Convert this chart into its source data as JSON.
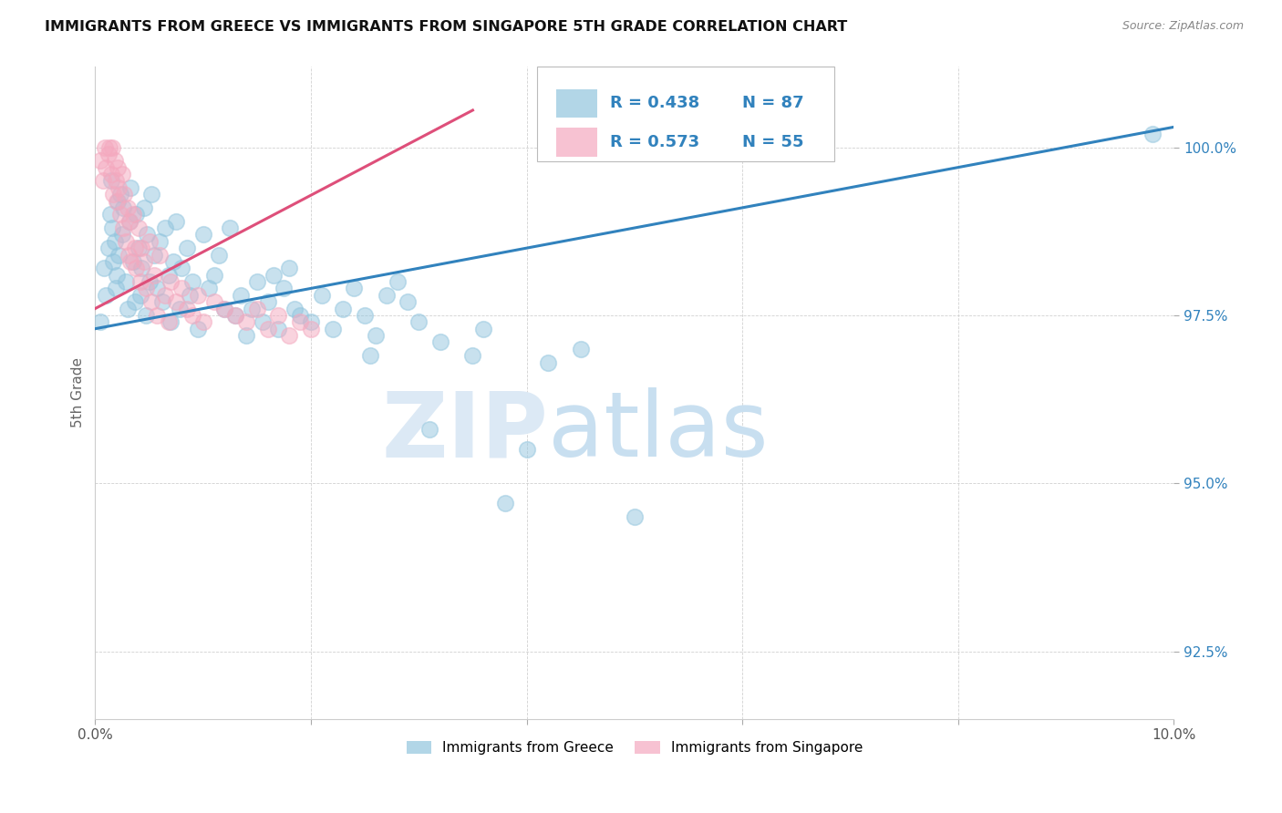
{
  "title": "IMMIGRANTS FROM GREECE VS IMMIGRANTS FROM SINGAPORE 5TH GRADE CORRELATION CHART",
  "source": "Source: ZipAtlas.com",
  "ylabel": "5th Grade",
  "xlim": [
    0.0,
    10.0
  ],
  "ylim": [
    91.5,
    101.2
  ],
  "yticks": [
    92.5,
    95.0,
    97.5,
    100.0
  ],
  "ytick_labels": [
    "92.5%",
    "95.0%",
    "97.5%",
    "100.0%"
  ],
  "legend_R_blue": "R = 0.438",
  "legend_N_blue": "N = 87",
  "legend_R_pink": "R = 0.573",
  "legend_N_pink": "N = 55",
  "legend_label_blue": "Immigrants from Greece",
  "legend_label_pink": "Immigrants from Singapore",
  "blue_color": "#92c5de",
  "pink_color": "#f4a9bf",
  "blue_line_color": "#3182bd",
  "pink_line_color": "#de4f7a",
  "watermark_zip": "ZIP",
  "watermark_atlas": "atlas",
  "blue_trendline_x": [
    0.0,
    10.0
  ],
  "blue_trendline_y": [
    97.3,
    100.3
  ],
  "pink_trendline_x": [
    0.0,
    3.5
  ],
  "pink_trendline_y": [
    97.6,
    100.55
  ],
  "blue_scatter_x": [
    0.05,
    0.08,
    0.1,
    0.12,
    0.14,
    0.15,
    0.16,
    0.17,
    0.18,
    0.19,
    0.2,
    0.21,
    0.22,
    0.23,
    0.25,
    0.26,
    0.28,
    0.3,
    0.32,
    0.33,
    0.35,
    0.37,
    0.38,
    0.4,
    0.42,
    0.43,
    0.45,
    0.47,
    0.48,
    0.5,
    0.52,
    0.55,
    0.57,
    0.6,
    0.62,
    0.65,
    0.68,
    0.7,
    0.72,
    0.75,
    0.78,
    0.8,
    0.85,
    0.88,
    0.9,
    0.95,
    1.0,
    1.05,
    1.1,
    1.15,
    1.2,
    1.25,
    1.3,
    1.35,
    1.4,
    1.45,
    1.5,
    1.55,
    1.6,
    1.65,
    1.7,
    1.75,
    1.8,
    1.85,
    1.9,
    2.0,
    2.1,
    2.2,
    2.3,
    2.4,
    2.5,
    2.55,
    2.6,
    2.7,
    2.8,
    2.9,
    3.0,
    3.1,
    3.2,
    3.5,
    3.6,
    3.8,
    4.0,
    4.2,
    4.5,
    5.0,
    9.8
  ],
  "blue_scatter_y": [
    97.4,
    98.2,
    97.8,
    98.5,
    99.0,
    99.5,
    98.8,
    98.3,
    98.6,
    97.9,
    98.1,
    99.2,
    98.4,
    99.3,
    98.7,
    99.1,
    98.0,
    97.6,
    98.9,
    99.4,
    98.3,
    97.7,
    99.0,
    98.5,
    97.8,
    98.2,
    99.1,
    97.5,
    98.7,
    98.0,
    99.3,
    98.4,
    97.9,
    98.6,
    97.7,
    98.8,
    98.1,
    97.4,
    98.3,
    98.9,
    97.6,
    98.2,
    98.5,
    97.8,
    98.0,
    97.3,
    98.7,
    97.9,
    98.1,
    98.4,
    97.6,
    98.8,
    97.5,
    97.8,
    97.2,
    97.6,
    98.0,
    97.4,
    97.7,
    98.1,
    97.3,
    97.9,
    98.2,
    97.6,
    97.5,
    97.4,
    97.8,
    97.3,
    97.6,
    97.9,
    97.5,
    96.9,
    97.2,
    97.8,
    98.0,
    97.7,
    97.4,
    95.8,
    97.1,
    96.9,
    97.3,
    94.7,
    95.5,
    96.8,
    97.0,
    94.5,
    100.2
  ],
  "pink_scatter_x": [
    0.05,
    0.07,
    0.09,
    0.1,
    0.12,
    0.13,
    0.15,
    0.16,
    0.17,
    0.18,
    0.19,
    0.2,
    0.21,
    0.22,
    0.23,
    0.25,
    0.26,
    0.27,
    0.28,
    0.3,
    0.31,
    0.32,
    0.33,
    0.35,
    0.37,
    0.38,
    0.4,
    0.42,
    0.43,
    0.45,
    0.47,
    0.5,
    0.52,
    0.55,
    0.57,
    0.6,
    0.65,
    0.68,
    0.7,
    0.75,
    0.8,
    0.85,
    0.9,
    0.95,
    1.0,
    1.1,
    1.2,
    1.3,
    1.4,
    1.5,
    1.6,
    1.7,
    1.8,
    1.9,
    2.0
  ],
  "pink_scatter_y": [
    99.8,
    99.5,
    100.0,
    99.7,
    99.9,
    100.0,
    99.6,
    100.0,
    99.3,
    99.8,
    99.5,
    99.2,
    99.7,
    99.4,
    99.0,
    99.6,
    98.8,
    99.3,
    98.6,
    99.1,
    98.4,
    98.9,
    98.3,
    99.0,
    98.5,
    98.2,
    98.8,
    98.0,
    98.5,
    98.3,
    97.9,
    98.6,
    97.7,
    98.1,
    97.5,
    98.4,
    97.8,
    97.4,
    98.0,
    97.7,
    97.9,
    97.6,
    97.5,
    97.8,
    97.4,
    97.7,
    97.6,
    97.5,
    97.4,
    97.6,
    97.3,
    97.5,
    97.2,
    97.4,
    97.3
  ]
}
